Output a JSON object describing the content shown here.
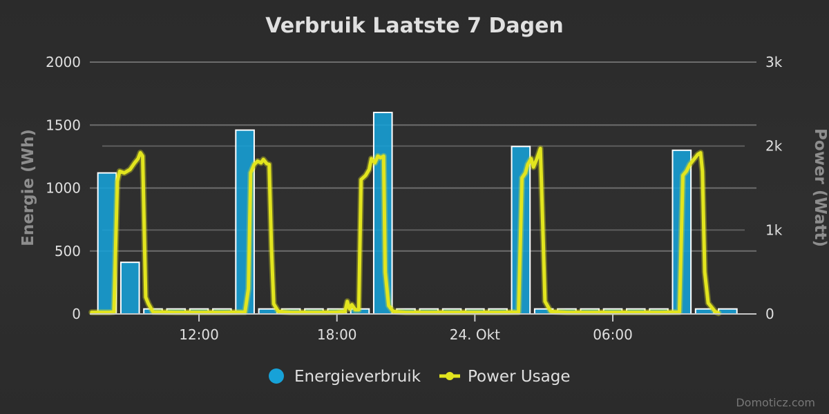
{
  "chart_data": {
    "type": "bar",
    "title": "Verbruik Laatste 7 Dagen",
    "y_left": {
      "label": "Energie (Wh)",
      "range": [
        0,
        2000
      ],
      "ticks": [
        0,
        500,
        1000,
        1500,
        2000
      ],
      "tick_labels": [
        "0",
        "500",
        "1000",
        "1500",
        "2000"
      ]
    },
    "y_right": {
      "label": "Power (Watt)",
      "range": [
        0,
        3000
      ],
      "ticks": [
        0,
        1000,
        2000,
        3000
      ],
      "tick_labels": [
        "0",
        "1k",
        "2k",
        "3k"
      ]
    },
    "x_axis": {
      "range_hours": [
        7.25,
        36.25
      ],
      "ticks": [
        {
          "hour": 12,
          "label": "12:00"
        },
        {
          "hour": 18,
          "label": "18:00"
        },
        {
          "hour": 24,
          "label": "24. Okt"
        },
        {
          "hour": 30,
          "label": "06:00"
        }
      ]
    },
    "grid": true,
    "legend_position": "bottom-center",
    "series": [
      {
        "name": "Energieverbruik",
        "type": "bar",
        "axis": "left",
        "color": "#17a2d8",
        "x_hours": [
          8,
          9,
          10,
          11,
          12,
          13,
          14,
          15,
          16,
          17,
          18,
          19,
          20,
          21,
          22,
          23,
          24,
          25,
          26,
          27,
          28,
          29,
          30,
          31,
          32,
          33,
          34,
          35
        ],
        "values": [
          1120,
          410,
          40,
          40,
          40,
          40,
          1460,
          40,
          40,
          40,
          40,
          40,
          1600,
          40,
          40,
          40,
          40,
          40,
          1330,
          40,
          40,
          40,
          40,
          40,
          40,
          1300,
          40,
          40
        ]
      },
      {
        "name": "Power Usage",
        "type": "line",
        "axis": "right",
        "color": "#e2e51e",
        "points": [
          [
            7.33,
            20
          ],
          [
            8.1,
            20
          ],
          [
            8.3,
            25
          ],
          [
            8.45,
            1580
          ],
          [
            8.55,
            1700
          ],
          [
            8.75,
            1680
          ],
          [
            9.0,
            1720
          ],
          [
            9.2,
            1800
          ],
          [
            9.35,
            1850
          ],
          [
            9.45,
            1920
          ],
          [
            9.55,
            1880
          ],
          [
            9.68,
            200
          ],
          [
            9.8,
            120
          ],
          [
            10.0,
            25
          ],
          [
            11.0,
            20
          ],
          [
            12.0,
            20
          ],
          [
            13.0,
            20
          ],
          [
            14.0,
            22
          ],
          [
            14.15,
            300
          ],
          [
            14.25,
            1680
          ],
          [
            14.4,
            1780
          ],
          [
            14.55,
            1820
          ],
          [
            14.7,
            1800
          ],
          [
            14.8,
            1840
          ],
          [
            14.95,
            1790
          ],
          [
            15.05,
            1780
          ],
          [
            15.15,
            800
          ],
          [
            15.25,
            120
          ],
          [
            15.45,
            30
          ],
          [
            16.0,
            20
          ],
          [
            17.0,
            20
          ],
          [
            17.5,
            20
          ],
          [
            18.0,
            22
          ],
          [
            18.35,
            30
          ],
          [
            18.45,
            150
          ],
          [
            18.55,
            60
          ],
          [
            18.65,
            110
          ],
          [
            18.8,
            50
          ],
          [
            18.95,
            50
          ],
          [
            19.05,
            1600
          ],
          [
            19.25,
            1650
          ],
          [
            19.4,
            1720
          ],
          [
            19.5,
            1850
          ],
          [
            19.65,
            1800
          ],
          [
            19.78,
            1880
          ],
          [
            19.9,
            1860
          ],
          [
            20.03,
            1880
          ],
          [
            20.1,
            500
          ],
          [
            20.25,
            100
          ],
          [
            20.45,
            30
          ],
          [
            21.0,
            20
          ],
          [
            22.0,
            20
          ],
          [
            23.0,
            20
          ],
          [
            24.0,
            20
          ],
          [
            25.0,
            20
          ],
          [
            25.9,
            22
          ],
          [
            26.05,
            1620
          ],
          [
            26.2,
            1680
          ],
          [
            26.3,
            1780
          ],
          [
            26.45,
            1850
          ],
          [
            26.55,
            1750
          ],
          [
            26.7,
            1850
          ],
          [
            26.85,
            1970
          ],
          [
            26.95,
            1100
          ],
          [
            27.05,
            150
          ],
          [
            27.3,
            30
          ],
          [
            28.0,
            20
          ],
          [
            29.0,
            20
          ],
          [
            30.0,
            20
          ],
          [
            31.0,
            20
          ],
          [
            32.0,
            20
          ],
          [
            32.9,
            22
          ],
          [
            33.05,
            1650
          ],
          [
            33.2,
            1700
          ],
          [
            33.35,
            1780
          ],
          [
            33.55,
            1850
          ],
          [
            33.7,
            1900
          ],
          [
            33.82,
            1920
          ],
          [
            33.9,
            1700
          ],
          [
            34.0,
            500
          ],
          [
            34.15,
            130
          ],
          [
            34.3,
            80
          ],
          [
            34.45,
            30
          ],
          [
            34.6,
            10
          ]
        ]
      }
    ]
  },
  "legend": {
    "items": [
      {
        "label": "Energieverbruik",
        "color": "#17a2d8",
        "symbol": "circle"
      },
      {
        "label": "Power Usage",
        "color": "#e2e51e",
        "symbol": "line-circle"
      }
    ]
  },
  "credits": "Domoticz.com"
}
